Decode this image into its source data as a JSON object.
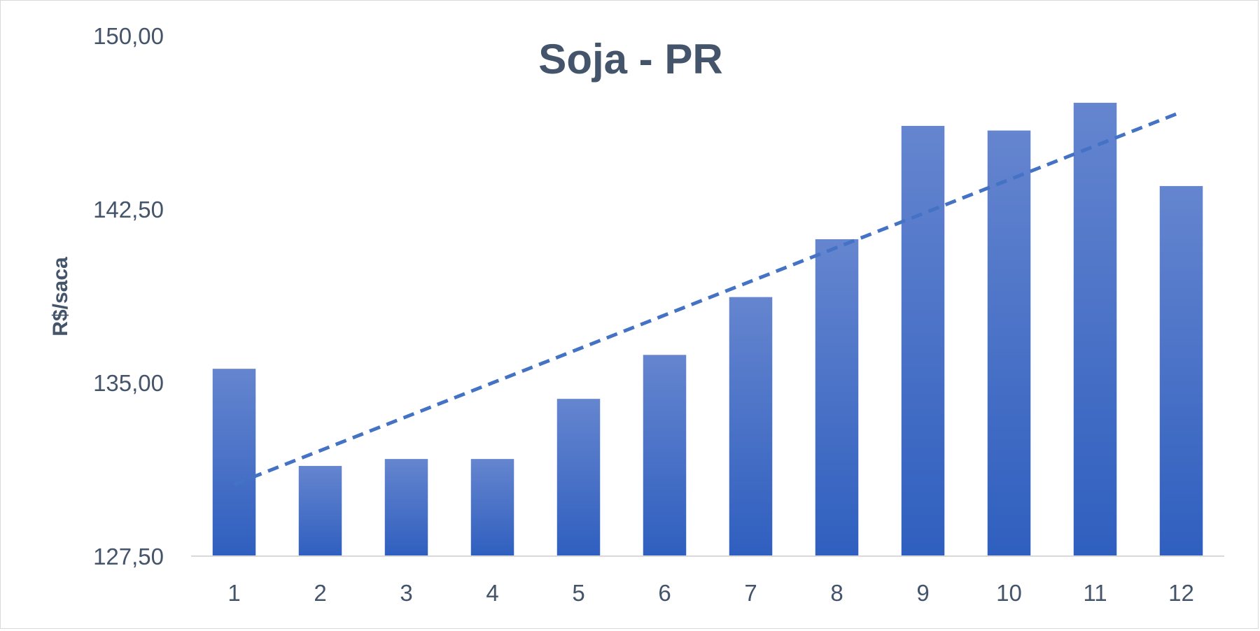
{
  "chart_data": {
    "type": "bar",
    "title": "Soja - PR",
    "xlabel": "",
    "ylabel": "R$/saca",
    "categories": [
      "1",
      "2",
      "3",
      "4",
      "5",
      "6",
      "7",
      "8",
      "9",
      "10",
      "11",
      "12"
    ],
    "values": [
      135.6,
      131.4,
      131.7,
      131.7,
      134.3,
      136.2,
      138.7,
      141.2,
      146.1,
      145.9,
      147.1,
      143.5
    ],
    "ylim": [
      127.5,
      150
    ],
    "yticks": [
      "127,50",
      "135,00",
      "142,50",
      "150,00"
    ],
    "ytick_values": [
      127.5,
      135,
      142.5,
      150
    ],
    "trendline": {
      "type": "linear",
      "style": "dashed",
      "start": 130.6,
      "end": 146.7
    },
    "grid": false,
    "legend": "none",
    "colors": {
      "bar_top": "#6585cf",
      "bar_bottom": "#2f5fbf",
      "trend": "#4472c4",
      "text": "#44546a",
      "axis": "#d9d9d9"
    }
  }
}
